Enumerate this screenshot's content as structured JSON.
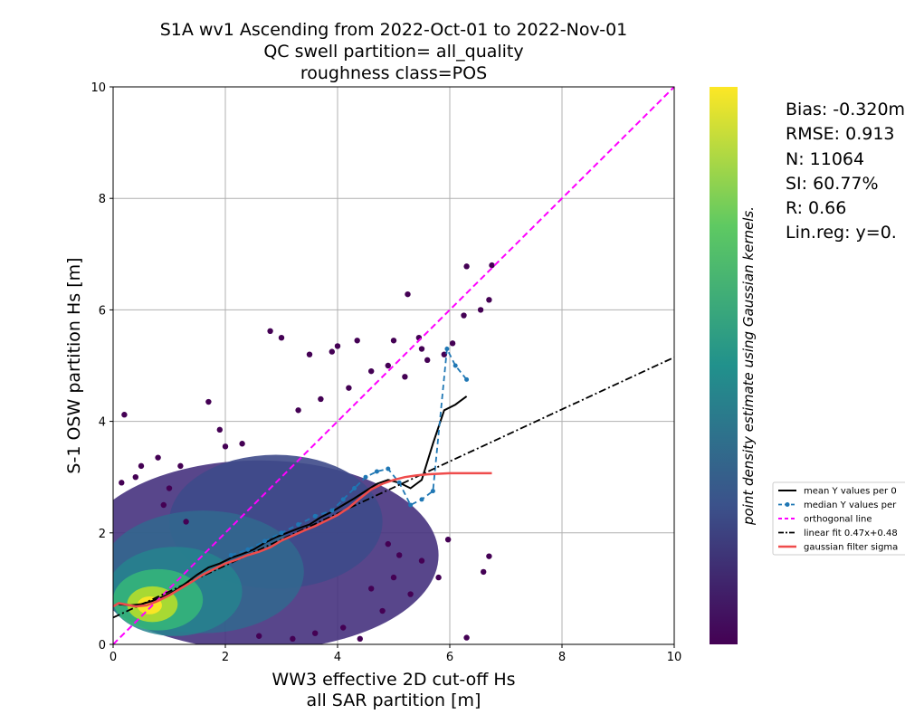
{
  "chart_data": {
    "type": "scatter",
    "title_lines": [
      "S1A wv1 Ascending from 2022-Oct-01 to 2022-Nov-01",
      "QC swell partition= all_quality",
      "roughness class=POS"
    ],
    "xlabel_lines": [
      "WW3 effective 2D cut-off Hs",
      "all SAR partition [m]"
    ],
    "ylabel": "S-1 OSW partition Hs [m]",
    "colorbar_label": "point density estimate using Gaussian kernels.",
    "xlim": [
      0,
      10
    ],
    "ylim": [
      0,
      10
    ],
    "x_ticks": [
      "0",
      "2",
      "4",
      "6",
      "8",
      "10"
    ],
    "y_ticks": [
      "0",
      "2",
      "4",
      "6",
      "8",
      "10"
    ],
    "grid": true,
    "legend_position": "right",
    "stats_lines": [
      "Bias: -0.320m",
      "RMSE: 0.913",
      "N: 11064",
      "SI: 60.77%",
      "R: 0.66",
      "Lin.reg: y=0."
    ],
    "series": [
      {
        "name": "mean Y values per 0",
        "color": "#000000",
        "style": "solid",
        "x": [
          0.1,
          0.3,
          0.5,
          0.7,
          0.9,
          1.1,
          1.3,
          1.5,
          1.7,
          1.9,
          2.1,
          2.3,
          2.5,
          2.7,
          2.9,
          3.1,
          3.3,
          3.5,
          3.7,
          3.9,
          4.1,
          4.3,
          4.5,
          4.7,
          4.9,
          5.1,
          5.3,
          5.5,
          5.7,
          5.9,
          6.1,
          6.3
        ],
        "y": [
          0.72,
          0.7,
          0.72,
          0.78,
          0.86,
          0.96,
          1.1,
          1.25,
          1.38,
          1.45,
          1.55,
          1.62,
          1.7,
          1.82,
          1.92,
          2.0,
          2.08,
          2.15,
          2.28,
          2.38,
          2.5,
          2.62,
          2.75,
          2.88,
          2.95,
          2.9,
          2.8,
          2.95,
          3.6,
          4.2,
          4.3,
          4.45
        ]
      },
      {
        "name": "median Y values per",
        "color": "#1f77b4",
        "style": "dashed-markers",
        "x": [
          2.1,
          2.4,
          2.7,
          3.0,
          3.3,
          3.6,
          3.9,
          4.1,
          4.3,
          4.5,
          4.7,
          4.9,
          5.1,
          5.3,
          5.5,
          5.7,
          5.95,
          6.1,
          6.3
        ],
        "y": [
          1.6,
          1.7,
          1.85,
          2.0,
          2.15,
          2.3,
          2.4,
          2.6,
          2.8,
          3.0,
          3.1,
          3.15,
          2.9,
          2.5,
          2.6,
          2.75,
          5.3,
          5.0,
          4.75
        ]
      },
      {
        "name": "orthogonal line",
        "color": "#ff00ff",
        "style": "dashed",
        "x": [
          0,
          10
        ],
        "y": [
          0,
          10
        ]
      },
      {
        "name": "linear fit 0.47x+0.48",
        "color": "#000000",
        "style": "dashdot",
        "x": [
          0,
          10
        ],
        "y": [
          0.48,
          5.15
        ]
      },
      {
        "name": "gaussian filter sigma",
        "color": "#ef4c4c",
        "style": "solid",
        "x": [
          0.0,
          0.1,
          0.2,
          0.4,
          0.6,
          0.8,
          1.0,
          1.2,
          1.4,
          1.6,
          1.8,
          2.0,
          2.2,
          2.4,
          2.6,
          2.8,
          3.0,
          3.2,
          3.4,
          3.6,
          3.8,
          4.0,
          4.2,
          4.4,
          4.6,
          4.8,
          5.0,
          5.2,
          5.4,
          5.6,
          5.8,
          6.0,
          6.4,
          6.75
        ],
        "y": [
          0.68,
          0.74,
          0.72,
          0.68,
          0.7,
          0.78,
          0.88,
          1.0,
          1.12,
          1.25,
          1.35,
          1.45,
          1.52,
          1.6,
          1.66,
          1.74,
          1.86,
          1.95,
          2.04,
          2.12,
          2.22,
          2.32,
          2.45,
          2.62,
          2.78,
          2.88,
          2.95,
          3.0,
          3.03,
          3.05,
          3.06,
          3.07,
          3.07,
          3.07
        ]
      }
    ],
    "outliers": [
      [
        0.2,
        4.12
      ],
      [
        0.5,
        3.2
      ],
      [
        0.8,
        3.35
      ],
      [
        1.2,
        3.2
      ],
      [
        1.7,
        4.35
      ],
      [
        1.9,
        3.85
      ],
      [
        2.8,
        5.62
      ],
      [
        3.0,
        5.5
      ],
      [
        3.3,
        4.2
      ],
      [
        3.5,
        5.2
      ],
      [
        3.9,
        5.25
      ],
      [
        4.0,
        5.35
      ],
      [
        4.35,
        5.45
      ],
      [
        4.6,
        4.9
      ],
      [
        4.9,
        5.0
      ],
      [
        5.0,
        5.45
      ],
      [
        5.25,
        6.28
      ],
      [
        5.45,
        5.5
      ],
      [
        5.5,
        5.3
      ],
      [
        5.6,
        5.1
      ],
      [
        5.9,
        5.2
      ],
      [
        6.05,
        5.4
      ],
      [
        6.25,
        5.9
      ],
      [
        6.3,
        6.78
      ],
      [
        6.55,
        6.0
      ],
      [
        6.7,
        6.18
      ],
      [
        6.75,
        6.8
      ],
      [
        5.2,
        4.8
      ],
      [
        4.2,
        4.6
      ],
      [
        3.7,
        4.4
      ],
      [
        6.6,
        1.3
      ],
      [
        6.7,
        1.58
      ],
      [
        6.3,
        0.12
      ],
      [
        5.97,
        1.88
      ],
      [
        5.8,
        1.2
      ],
      [
        5.5,
        1.5
      ],
      [
        5.3,
        0.9
      ],
      [
        5.0,
        1.2
      ],
      [
        4.8,
        0.6
      ],
      [
        4.6,
        1.0
      ],
      [
        5.1,
        1.6
      ],
      [
        4.9,
        1.8
      ],
      [
        0.15,
        2.9
      ],
      [
        0.4,
        3.0
      ],
      [
        0.9,
        2.5
      ],
      [
        1.0,
        2.8
      ],
      [
        1.3,
        2.2
      ],
      [
        2.0,
        3.55
      ],
      [
        2.3,
        3.6
      ],
      [
        3.2,
        0.1
      ],
      [
        2.6,
        0.15
      ],
      [
        3.6,
        0.2
      ],
      [
        4.1,
        0.3
      ],
      [
        4.4,
        0.1
      ]
    ]
  }
}
